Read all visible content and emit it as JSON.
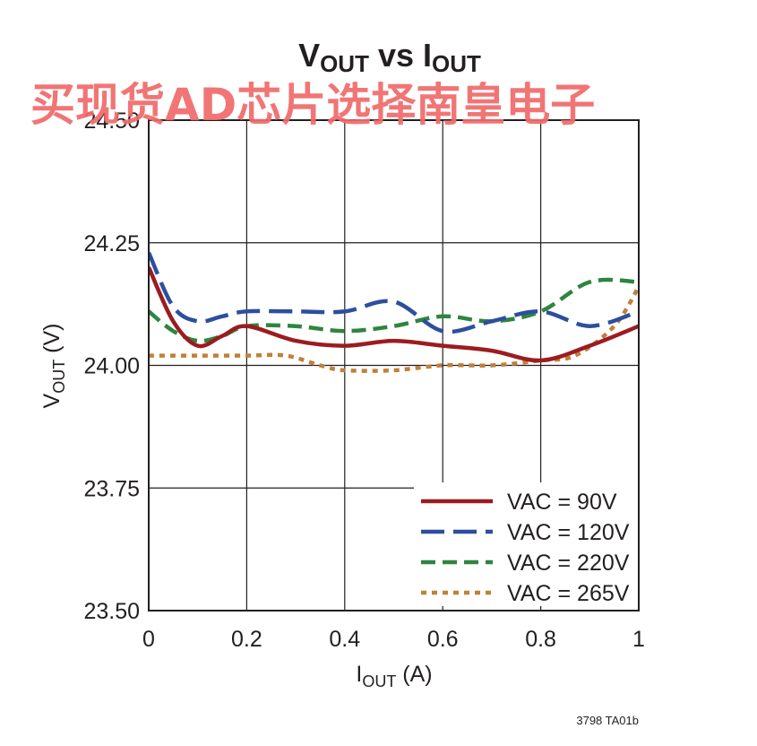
{
  "chart_data": {
    "type": "line",
    "title": {
      "main": "V",
      "main_sub": "OUT",
      "mid": " vs I",
      "mid_sub": "OUT"
    },
    "xlabel": {
      "main": "I",
      "sub": "OUT",
      "rest": " (A)"
    },
    "ylabel": {
      "main": "V",
      "sub": "OUT",
      "rest": " (V)"
    },
    "xlim": [
      0,
      1
    ],
    "ylim": [
      23.5,
      24.5
    ],
    "xticks": [
      0,
      0.2,
      0.4,
      0.6,
      0.8,
      1
    ],
    "xtick_labels": [
      "0",
      "0.2",
      "0.4",
      "0.6",
      "0.8",
      "1"
    ],
    "yticks": [
      23.5,
      23.75,
      24.0,
      24.25,
      24.5
    ],
    "ytick_labels": [
      "23.50",
      "23.75",
      "24.00",
      "24.25",
      "24.50"
    ],
    "grid": true,
    "legend_position": "bottom-right",
    "series": [
      {
        "name": "VAC = 90V",
        "color": "#9b1c20",
        "dash": "solid",
        "x": [
          0,
          0.05,
          0.1,
          0.15,
          0.2,
          0.3,
          0.4,
          0.5,
          0.6,
          0.7,
          0.8,
          0.9,
          1.0
        ],
        "y": [
          24.2,
          24.09,
          24.04,
          24.06,
          24.08,
          24.05,
          24.04,
          24.05,
          24.04,
          24.03,
          24.01,
          24.04,
          24.08
        ]
      },
      {
        "name": "VAC = 120V",
        "color": "#2c4f9e",
        "dash": "long",
        "x": [
          0,
          0.05,
          0.1,
          0.15,
          0.2,
          0.3,
          0.4,
          0.5,
          0.6,
          0.7,
          0.8,
          0.9,
          1.0
        ],
        "y": [
          24.23,
          24.12,
          24.09,
          24.1,
          24.11,
          24.11,
          24.11,
          24.13,
          24.07,
          24.09,
          24.11,
          24.08,
          24.11
        ]
      },
      {
        "name": "VAC = 220V",
        "color": "#2e8540",
        "dash": "medium",
        "x": [
          0,
          0.05,
          0.1,
          0.15,
          0.2,
          0.3,
          0.4,
          0.5,
          0.6,
          0.7,
          0.8,
          0.9,
          1.0
        ],
        "y": [
          24.11,
          24.07,
          24.05,
          24.06,
          24.08,
          24.08,
          24.07,
          24.08,
          24.1,
          24.09,
          24.11,
          24.17,
          24.17
        ]
      },
      {
        "name": "VAC = 265V",
        "color": "#c0803a",
        "dash": "short",
        "x": [
          0,
          0.1,
          0.2,
          0.28,
          0.35,
          0.4,
          0.5,
          0.6,
          0.7,
          0.8,
          0.87,
          0.95,
          1.0
        ],
        "y": [
          24.02,
          24.02,
          24.02,
          24.02,
          24.0,
          23.99,
          23.99,
          24.0,
          24.0,
          24.01,
          24.02,
          24.08,
          24.16
        ]
      }
    ],
    "annotations": [
      "3798 TA01b"
    ]
  },
  "watermark": {
    "text": "买现货AD芯片选择南皇电子"
  }
}
